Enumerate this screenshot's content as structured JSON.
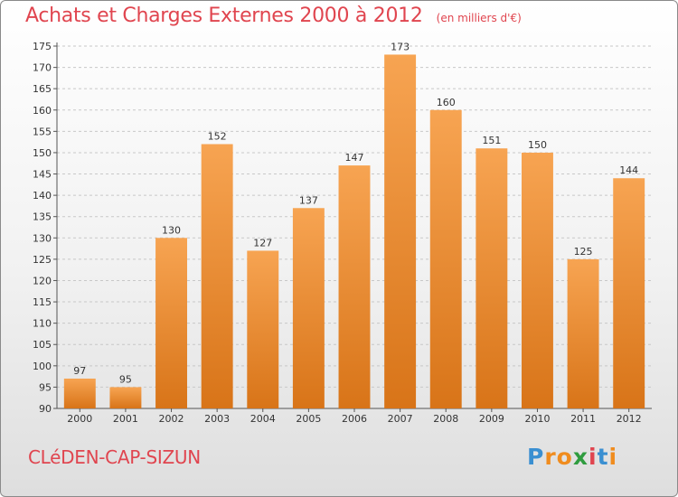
{
  "title": "Achats et Charges Externes 2000 à 2012",
  "subtitle": "(en milliers d'€)",
  "commune": "CLéDEN-CAP-SIZUN",
  "logo": {
    "letters": [
      "P",
      "r",
      "o",
      "x",
      "i",
      "t",
      "i"
    ],
    "colors": [
      "#3a8fd1",
      "#f08c1e",
      "#f08c1e",
      "#2f9c3f",
      "#e0454f",
      "#3a8fd1",
      "#f08c1e"
    ]
  },
  "colors": {
    "bar_top": "#f7a452",
    "bar_bottom": "#d87418",
    "title": "#e0454f",
    "grid": "#c8c8c8"
  },
  "chart_data": {
    "type": "bar",
    "categories": [
      "2000",
      "2001",
      "2002",
      "2003",
      "2004",
      "2005",
      "2006",
      "2007",
      "2008",
      "2009",
      "2010",
      "2011",
      "2012"
    ],
    "values": [
      97,
      95,
      130,
      152,
      127,
      137,
      147,
      173,
      160,
      151,
      150,
      125,
      144
    ],
    "ylim": [
      90,
      175
    ],
    "yticks": [
      90,
      95,
      100,
      105,
      110,
      115,
      120,
      125,
      130,
      135,
      140,
      145,
      150,
      155,
      160,
      165,
      170,
      175
    ],
    "grid": true,
    "data_labels": true
  }
}
